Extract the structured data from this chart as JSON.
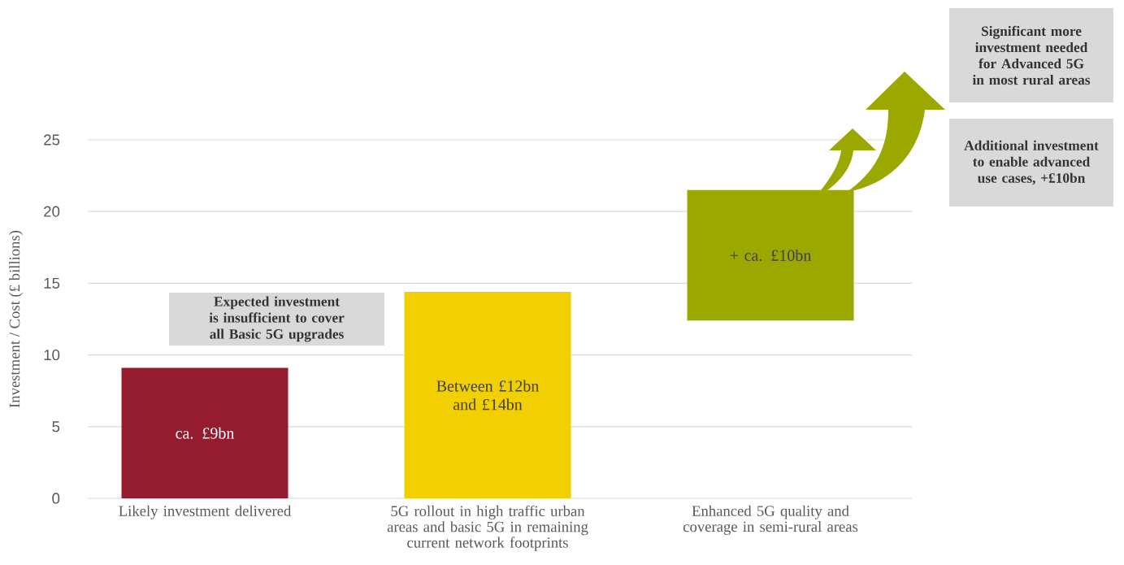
{
  "chart_data": {
    "type": "bar",
    "ylabel": "Investment / Cost (£ billions)",
    "categories": [
      "Likely investment delivered",
      "5G rollout in high traffic urban areas and basic 5G in remaining current network footprints",
      "Enhanced 5G quality and coverage in semi-rural areas"
    ],
    "values": [
      9.1,
      14.4,
      9.1
    ],
    "base": [
      0,
      0,
      12.4
    ],
    "colors": [
      "#951b2f",
      "#f2cf00",
      "#9ba800"
    ],
    "value_labels": [
      "ca. £9bn",
      "Between £12bn and £14bn",
      null
    ],
    "ylim": [
      0,
      25
    ],
    "yticks": [
      0,
      5,
      10,
      15,
      20,
      25
    ],
    "grid": "y",
    "annotations": [
      "Expected investment is insufficient to cover all Basic 5G upgrades",
      "Significant more investment needed for Advanced 5G in most rural areas",
      "Additional investment to enable advanced use cases, +£10bn",
      "+ ca. £10bn"
    ]
  }
}
